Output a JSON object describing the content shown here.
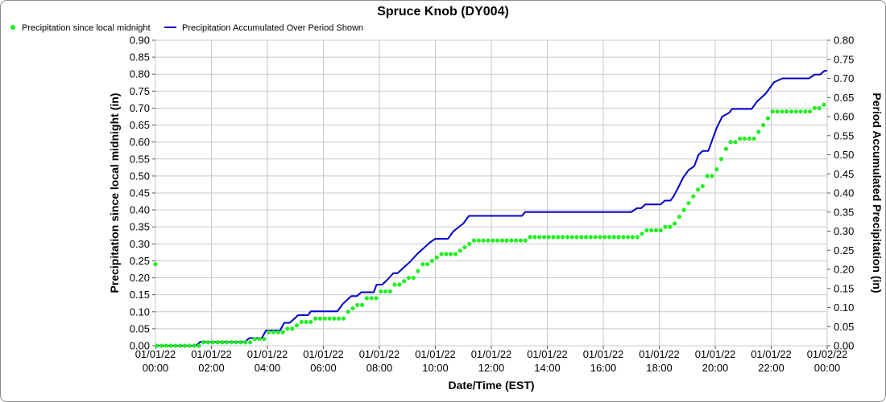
{
  "chart_data": {
    "type": "line",
    "title": "Spruce Knob (DY004)",
    "xlabel": "Date/Time (EST)",
    "ylabel_left": "Precipitation since local midnight (in)",
    "ylabel_right": "Period Accumulated Precipitation (in)",
    "legend_position": "top-left",
    "grid": true,
    "colors": {
      "points": "#22ee22",
      "line": "#0000cc",
      "grid": "#c8c8c8",
      "frame": "#8a8a8a"
    },
    "x_range_hours": [
      0,
      24
    ],
    "x_ticks": [
      {
        "h": 0,
        "date": "01/01/22",
        "time": "00:00"
      },
      {
        "h": 2,
        "date": "01/01/22",
        "time": "02:00"
      },
      {
        "h": 4,
        "date": "01/01/22",
        "time": "04:00"
      },
      {
        "h": 6,
        "date": "01/01/22",
        "time": "06:00"
      },
      {
        "h": 8,
        "date": "01/01/22",
        "time": "08:00"
      },
      {
        "h": 10,
        "date": "01/01/22",
        "time": "10:00"
      },
      {
        "h": 12,
        "date": "01/01/22",
        "time": "12:00"
      },
      {
        "h": 14,
        "date": "01/01/22",
        "time": "14:00"
      },
      {
        "h": 16,
        "date": "01/01/22",
        "time": "16:00"
      },
      {
        "h": 18,
        "date": "01/01/22",
        "time": "18:00"
      },
      {
        "h": 20,
        "date": "01/01/22",
        "time": "20:00"
      },
      {
        "h": 22,
        "date": "01/01/22",
        "time": "22:00"
      },
      {
        "h": 24,
        "date": "01/02/22",
        "time": "00:00"
      }
    ],
    "y_left": {
      "min": 0,
      "max": 0.9,
      "step": 0.05
    },
    "y_right": {
      "min": 0,
      "max": 0.8,
      "step": 0.05
    },
    "series": [
      {
        "name": "Precipitation since local midnight",
        "axis": "left",
        "style": "points",
        "points": [
          [
            0,
            0.24
          ],
          [
            0.05,
            0.0
          ],
          [
            1.5,
            0.0
          ],
          [
            1.65,
            0.01
          ],
          [
            3.25,
            0.01
          ],
          [
            3.45,
            0.02
          ],
          [
            3.95,
            0.02
          ],
          [
            4.05,
            0.04
          ],
          [
            4.45,
            0.04
          ],
          [
            4.6,
            0.05
          ],
          [
            4.9,
            0.06
          ],
          [
            5.15,
            0.07
          ],
          [
            5.6,
            0.08
          ],
          [
            6.6,
            0.08
          ],
          [
            6.8,
            0.1
          ],
          [
            7.0,
            0.11
          ],
          [
            7.1,
            0.12
          ],
          [
            7.45,
            0.13
          ],
          [
            7.55,
            0.14
          ],
          [
            7.85,
            0.14
          ],
          [
            7.95,
            0.16
          ],
          [
            8.25,
            0.16
          ],
          [
            8.4,
            0.17
          ],
          [
            8.55,
            0.18
          ],
          [
            8.85,
            0.19
          ],
          [
            9.05,
            0.2
          ],
          [
            9.3,
            0.22
          ],
          [
            9.55,
            0.24
          ],
          [
            9.75,
            0.25
          ],
          [
            9.95,
            0.26
          ],
          [
            10.15,
            0.27
          ],
          [
            10.55,
            0.27
          ],
          [
            10.75,
            0.28
          ],
          [
            10.95,
            0.29
          ],
          [
            11.1,
            0.3
          ],
          [
            11.25,
            0.31
          ],
          [
            13.25,
            0.31
          ],
          [
            13.35,
            0.32
          ],
          [
            17.2,
            0.32
          ],
          [
            17.35,
            0.33
          ],
          [
            17.5,
            0.34
          ],
          [
            18.0,
            0.34
          ],
          [
            18.2,
            0.35
          ],
          [
            18.5,
            0.36
          ],
          [
            18.65,
            0.38
          ],
          [
            18.85,
            0.4
          ],
          [
            19.0,
            0.42
          ],
          [
            19.15,
            0.44
          ],
          [
            19.3,
            0.46
          ],
          [
            19.5,
            0.47
          ],
          [
            19.65,
            0.5
          ],
          [
            19.9,
            0.52
          ],
          [
            20.1,
            0.55
          ],
          [
            20.25,
            0.58
          ],
          [
            20.5,
            0.6
          ],
          [
            20.8,
            0.61
          ],
          [
            21.3,
            0.61
          ],
          [
            21.5,
            0.63
          ],
          [
            21.7,
            0.65
          ],
          [
            21.85,
            0.67
          ],
          [
            22.05,
            0.69
          ],
          [
            23.35,
            0.69
          ],
          [
            23.5,
            0.7
          ],
          [
            23.75,
            0.7
          ],
          [
            23.85,
            0.71
          ],
          [
            24.0,
            0.71
          ]
        ]
      },
      {
        "name": "Precipitation Accumulated Over Period Shown",
        "axis": "right",
        "style": "line",
        "points": [
          [
            0,
            0.0
          ],
          [
            1.45,
            0.0
          ],
          [
            1.6,
            0.01
          ],
          [
            3.2,
            0.01
          ],
          [
            3.35,
            0.02
          ],
          [
            3.8,
            0.02
          ],
          [
            3.95,
            0.04
          ],
          [
            4.45,
            0.04
          ],
          [
            4.6,
            0.06
          ],
          [
            4.8,
            0.06
          ],
          [
            5.1,
            0.08
          ],
          [
            5.45,
            0.08
          ],
          [
            5.55,
            0.09
          ],
          [
            6.5,
            0.09
          ],
          [
            6.7,
            0.11
          ],
          [
            7.0,
            0.13
          ],
          [
            7.2,
            0.13
          ],
          [
            7.35,
            0.14
          ],
          [
            7.8,
            0.14
          ],
          [
            7.9,
            0.16
          ],
          [
            8.1,
            0.16
          ],
          [
            8.25,
            0.17
          ],
          [
            8.5,
            0.19
          ],
          [
            8.65,
            0.19
          ],
          [
            8.95,
            0.21
          ],
          [
            9.1,
            0.22
          ],
          [
            9.35,
            0.24
          ],
          [
            9.65,
            0.26
          ],
          [
            9.8,
            0.27
          ],
          [
            10.0,
            0.28
          ],
          [
            10.45,
            0.28
          ],
          [
            10.65,
            0.3
          ],
          [
            11.0,
            0.32
          ],
          [
            11.2,
            0.34
          ],
          [
            13.1,
            0.34
          ],
          [
            13.2,
            0.35
          ],
          [
            17.0,
            0.35
          ],
          [
            17.2,
            0.36
          ],
          [
            17.35,
            0.36
          ],
          [
            17.5,
            0.37
          ],
          [
            18.05,
            0.37
          ],
          [
            18.2,
            0.38
          ],
          [
            18.4,
            0.38
          ],
          [
            18.5,
            0.39
          ],
          [
            18.65,
            0.41
          ],
          [
            18.85,
            0.44
          ],
          [
            19.05,
            0.46
          ],
          [
            19.25,
            0.47
          ],
          [
            19.4,
            0.5
          ],
          [
            19.55,
            0.51
          ],
          [
            19.75,
            0.51
          ],
          [
            19.9,
            0.54
          ],
          [
            20.05,
            0.57
          ],
          [
            20.25,
            0.6
          ],
          [
            20.5,
            0.61
          ],
          [
            20.6,
            0.62
          ],
          [
            21.3,
            0.62
          ],
          [
            21.5,
            0.64
          ],
          [
            21.8,
            0.66
          ],
          [
            22.1,
            0.69
          ],
          [
            22.4,
            0.7
          ],
          [
            23.35,
            0.7
          ],
          [
            23.55,
            0.71
          ],
          [
            23.75,
            0.71
          ],
          [
            23.9,
            0.72
          ],
          [
            24.0,
            0.72
          ]
        ]
      }
    ]
  }
}
